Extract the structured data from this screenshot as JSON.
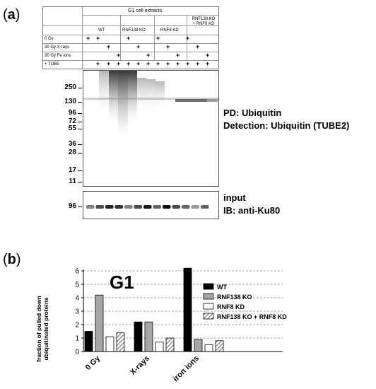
{
  "panel_a": {
    "letter": "a",
    "table": {
      "header": "G1 cell extracts",
      "groups": [
        "WT",
        "RNF138 KO",
        "RNF8 KD",
        "RNF138 KO\n+ RNF8 KD"
      ],
      "rows": [
        "0 Gy",
        "30 Gy X-rays",
        "30 Gy Fe ions",
        "+ TUBE"
      ],
      "sign": "+"
    },
    "mw_markers": [
      "250",
      "130",
      "96",
      "72",
      "55",
      "36",
      "28",
      "17",
      "11"
    ],
    "pd_label": "PD: Ubiquitin",
    "detection_label": "Detection: Ubiquitin (TUBE2)",
    "input_mw": "96",
    "input_label": "input",
    "ib_label": "IB: anti-Ku80"
  },
  "panel_b": {
    "letter": "b"
  },
  "chart_data": {
    "type": "bar",
    "title": "G1",
    "ylabel": "fraction of pulled down ubiquitinated proteins",
    "xlabel": "",
    "ylim": [
      0,
      6
    ],
    "yticks": [
      "0",
      "1",
      "2",
      "3",
      "4",
      "5",
      "6"
    ],
    "categories": [
      "0 Gy",
      "X-rays",
      "iron ions"
    ],
    "series": [
      {
        "name": "WT",
        "values": [
          1.5,
          2.2,
          6.2
        ],
        "color": "#000000"
      },
      {
        "name": "RNF138 KO",
        "values": [
          4.2,
          2.2,
          0.9
        ],
        "color": "#a6a6a6"
      },
      {
        "name": "RNF8 KD",
        "values": [
          1.1,
          0.7,
          0.5
        ],
        "color": "#ffffff"
      },
      {
        "name": "RNF138 KO + RNF8 KD",
        "values": [
          1.4,
          1.0,
          0.8
        ],
        "color": "hatch"
      }
    ],
    "grid": "horizontal dashed",
    "legend": "right"
  }
}
